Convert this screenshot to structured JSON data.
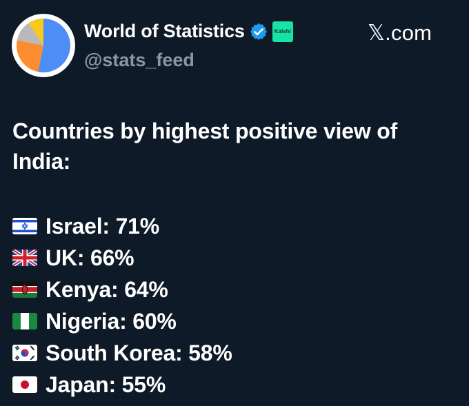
{
  "account": {
    "display_name": "World of Statistics",
    "handle": "@stats_feed",
    "badge_text": "Kalshi",
    "avatar_icon": "pie-chart-icon",
    "verified_icon": "verified-badge-icon",
    "verified_color": "#1d9bf0"
  },
  "watermark": {
    "text": "𝕏.com"
  },
  "post": {
    "headline": "Countries by highest positive view of India:",
    "items": [
      {
        "country": "Israel",
        "value": "71%",
        "text": "Israel: 71%",
        "flag_icon": "israel-flag-icon"
      },
      {
        "country": "UK",
        "value": "66%",
        "text": "UK: 66%",
        "flag_icon": "uk-flag-icon"
      },
      {
        "country": "Kenya",
        "value": "64%",
        "text": "Kenya: 64%",
        "flag_icon": "kenya-flag-icon"
      },
      {
        "country": "Nigeria",
        "value": "60%",
        "text": "Nigeria: 60%",
        "flag_icon": "nigeria-flag-icon"
      },
      {
        "country": "South Korea",
        "value": "58%",
        "text": "South Korea: 58%",
        "flag_icon": "south-korea-flag-icon"
      },
      {
        "country": "Japan",
        "value": "55%",
        "text": "Japan: 55%",
        "flag_icon": "japan-flag-icon"
      }
    ]
  },
  "colors": {
    "background": "#0e1a28",
    "text": "#ffffff",
    "handle": "#8a96a3",
    "badge_bg": "#18e3a5"
  }
}
